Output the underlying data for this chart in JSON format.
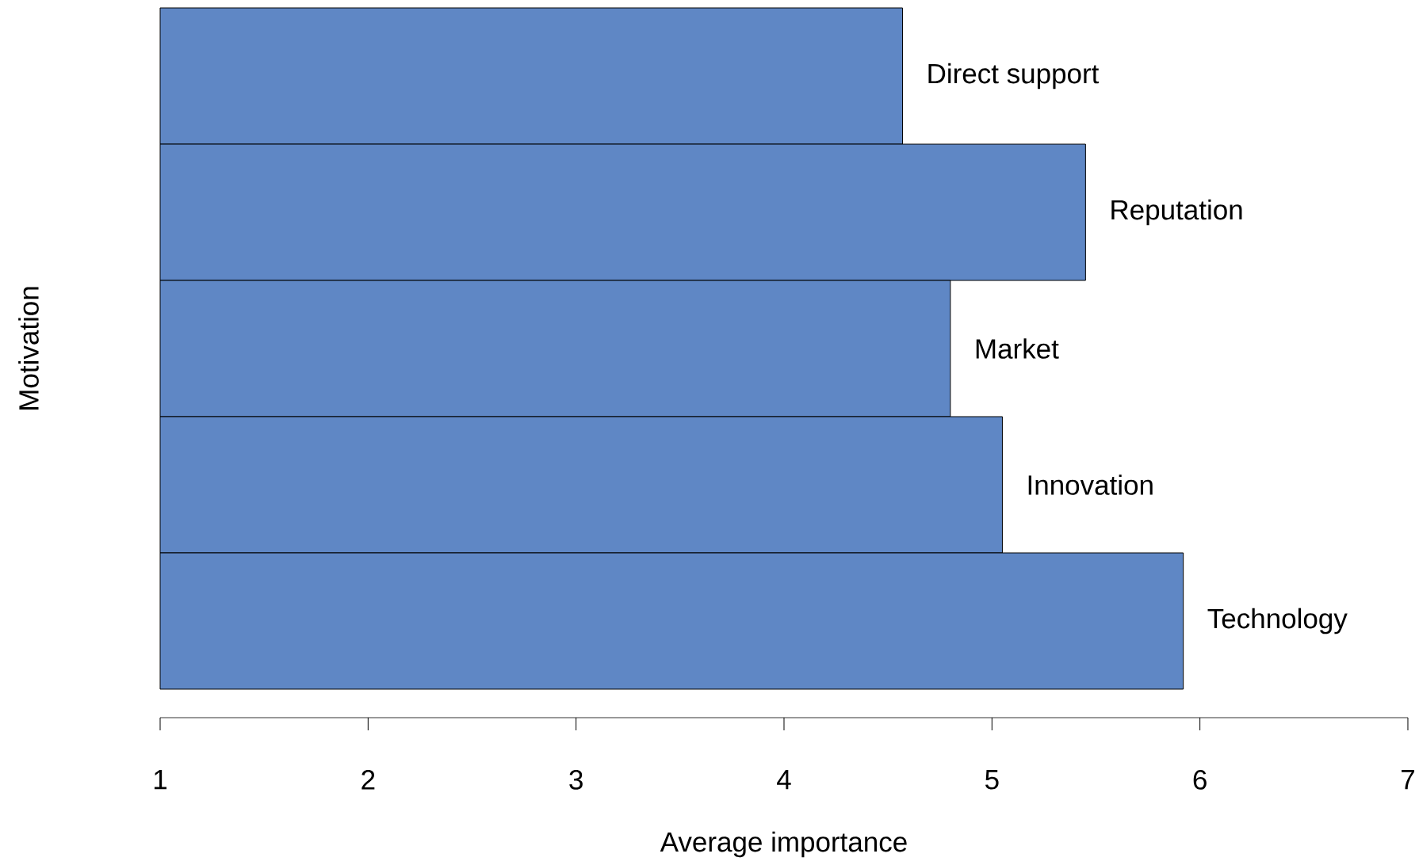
{
  "chart_data": {
    "type": "bar",
    "orientation": "horizontal",
    "categories": [
      "Direct support",
      "Reputation",
      "Market",
      "Innovation",
      "Technology"
    ],
    "values": [
      4.57,
      5.45,
      4.8,
      5.05,
      5.92
    ],
    "color": "#5f87c5",
    "xlim": [
      1,
      7
    ],
    "xticks": [
      1,
      2,
      3,
      4,
      5,
      6,
      7
    ],
    "xlabel": "Average importance",
    "ylabel": "Motivation"
  }
}
